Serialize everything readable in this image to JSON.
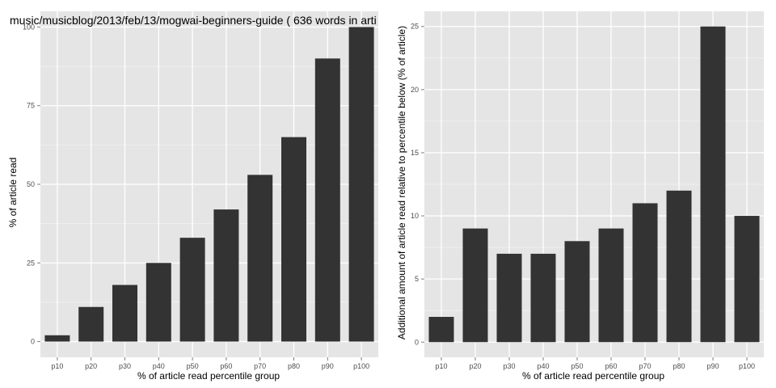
{
  "chart_data": [
    {
      "type": "bar",
      "title": "music/musicblog/2013/feb/13/mogwai-beginners-guide ( 636 words in arti",
      "xlabel": "% of article read percentile group",
      "ylabel": "% of article read",
      "categories": [
        "p10",
        "p20",
        "p30",
        "p40",
        "p50",
        "p60",
        "p70",
        "p80",
        "p90",
        "p100"
      ],
      "values": [
        2,
        11,
        18,
        25,
        33,
        42,
        53,
        65,
        90,
        100
      ],
      "ylim": [
        -5,
        105
      ],
      "yticks": [
        0,
        25,
        50,
        75,
        100
      ],
      "grid": true,
      "colors": {
        "bar": "#333333",
        "panel": "#e5e5e5",
        "grid_major": "#ffffff",
        "grid_minor": "#f2f2f2"
      }
    },
    {
      "type": "bar",
      "title": "",
      "xlabel": "% of article read percentile group",
      "ylabel": "Additional amount of article read relative to percentile below (% of article)",
      "categories": [
        "p10",
        "p20",
        "p30",
        "p40",
        "p50",
        "p60",
        "p70",
        "p80",
        "p90",
        "p100"
      ],
      "values": [
        2,
        9,
        7,
        7,
        8,
        9,
        11,
        12,
        25,
        10
      ],
      "ylim": [
        -1.2,
        26.2
      ],
      "yticks": [
        0,
        5,
        10,
        15,
        20,
        25
      ],
      "grid": true,
      "colors": {
        "bar": "#333333",
        "panel": "#e5e5e5",
        "grid_major": "#ffffff",
        "grid_minor": "#f2f2f2"
      }
    }
  ]
}
